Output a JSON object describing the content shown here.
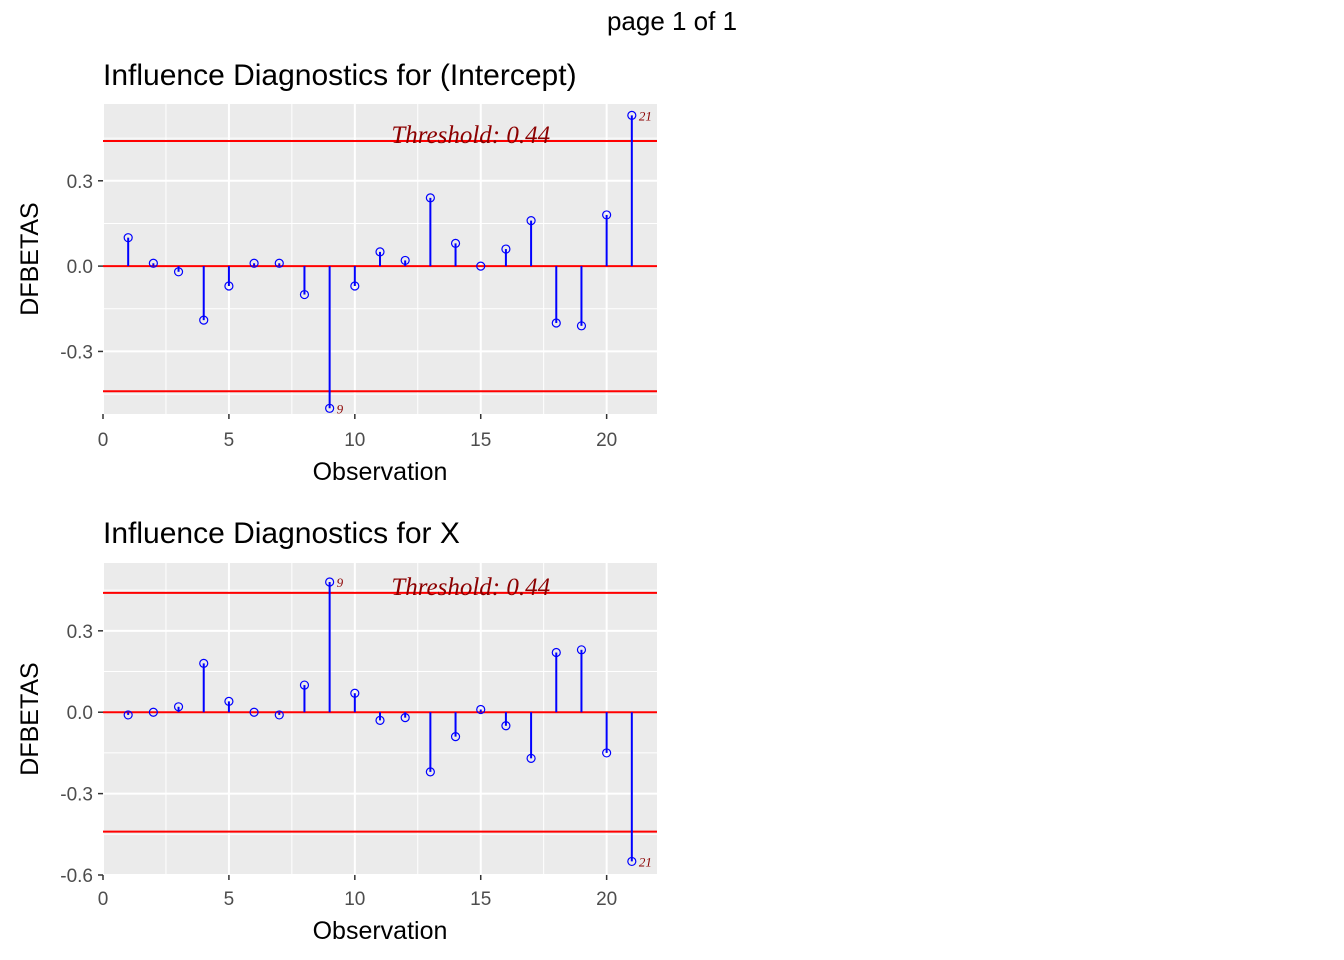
{
  "page_label": "page 1 of 1",
  "colors": {
    "panel_bg": "#EBEBEB",
    "grid": "#FFFFFF",
    "stem": "#0000FF",
    "threshold_line": "#FF0000",
    "label": "#8B0000"
  },
  "chart_data": [
    {
      "type": "lollipop",
      "title": "Influence Diagnostics for (Intercept)",
      "xlabel": "Observation",
      "ylabel": "DFBETAS",
      "xlim": [
        0,
        22
      ],
      "ylim": [
        -0.52,
        0.57
      ],
      "x_ticks": [
        0,
        5,
        10,
        15,
        20
      ],
      "x_tick_labels": [
        "0",
        "5",
        "10",
        "15",
        "20"
      ],
      "y_ticks": [
        -0.3,
        0.0,
        0.3
      ],
      "y_tick_labels": [
        "-0.3",
        "0.0",
        "0.3"
      ],
      "threshold": 0.44,
      "threshold_label": "Threshold: 0.44",
      "grid": true,
      "x": [
        1,
        2,
        3,
        4,
        5,
        6,
        7,
        8,
        9,
        10,
        11,
        12,
        13,
        14,
        15,
        16,
        17,
        18,
        19,
        20,
        21
      ],
      "values": [
        0.1,
        0.01,
        -0.02,
        -0.19,
        -0.07,
        0.01,
        0.01,
        -0.1,
        -0.5,
        -0.07,
        0.05,
        0.02,
        0.24,
        0.08,
        0.0,
        0.06,
        0.16,
        -0.2,
        -0.21,
        0.18,
        0.53
      ],
      "labeled_points": [
        {
          "x": 9,
          "label": "9"
        },
        {
          "x": 21,
          "label": "21"
        }
      ]
    },
    {
      "type": "lollipop",
      "title": "Influence Diagnostics for X",
      "xlabel": "Observation",
      "ylabel": "DFBETAS",
      "xlim": [
        0,
        22
      ],
      "ylim": [
        -0.6,
        0.55
      ],
      "x_ticks": [
        0,
        5,
        10,
        15,
        20
      ],
      "x_tick_labels": [
        "0",
        "5",
        "10",
        "15",
        "20"
      ],
      "y_ticks": [
        -0.6,
        -0.3,
        0.0,
        0.3
      ],
      "y_tick_labels": [
        "-0.6",
        "-0.3",
        "0.0",
        "0.3"
      ],
      "threshold": 0.44,
      "threshold_label": "Threshold: 0.44",
      "grid": true,
      "x": [
        1,
        2,
        3,
        4,
        5,
        6,
        7,
        8,
        9,
        10,
        11,
        12,
        13,
        14,
        15,
        16,
        17,
        18,
        19,
        20,
        21
      ],
      "values": [
        -0.01,
        0.0,
        0.02,
        0.18,
        0.04,
        0.0,
        -0.01,
        0.1,
        0.48,
        0.07,
        -0.03,
        -0.02,
        -0.22,
        -0.09,
        0.01,
        -0.05,
        -0.17,
        0.22,
        0.23,
        -0.15,
        -0.55
      ],
      "labeled_points": [
        {
          "x": 9,
          "label": "9"
        },
        {
          "x": 21,
          "label": "21"
        }
      ]
    }
  ]
}
